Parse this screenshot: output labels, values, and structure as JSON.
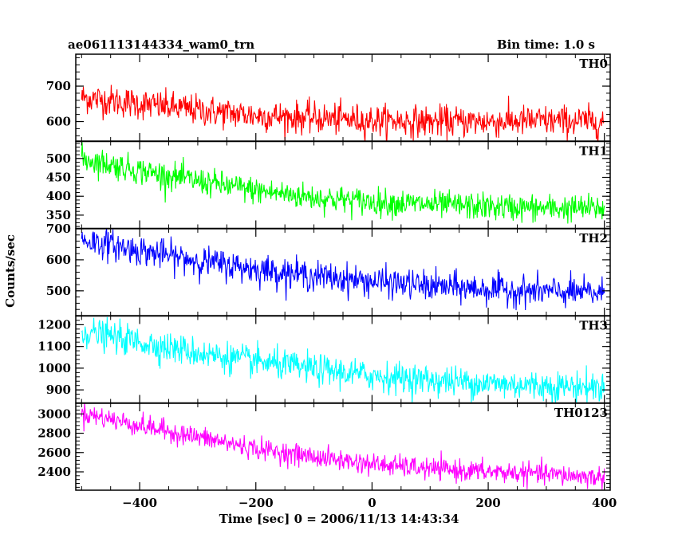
{
  "header": {
    "title": "ae061113144334_wam0_trn",
    "bin_time": "Bin time: 1.0 s"
  },
  "chart_data": {
    "type": "line",
    "subtype": "stacked light curves",
    "title": "ae061113144334_wam0_trn",
    "subtitle": "Bin time: 1.0 s",
    "xlabel": "Time [sec] 0 = 2006/11/13 14:43:34",
    "ylabel": "Counts/sec",
    "xlim": [
      -510,
      410
    ],
    "x_ticks": [
      -400,
      -200,
      0,
      200,
      400
    ],
    "x_tick_labels": [
      "−400",
      "−200",
      "0",
      "200",
      "400"
    ],
    "x_range": [
      -500,
      400
    ],
    "bin_time": 1.0,
    "panels": [
      {
        "name": "TH0",
        "color": "#ff0000",
        "ylim": [
          545,
          790
        ],
        "y_ticks": [
          600,
          700
        ],
        "y_tick_labels": [
          "600",
          "700"
        ],
        "trend": [
          [
            -500,
            668
          ],
          [
            -400,
            650
          ],
          [
            -300,
            632
          ],
          [
            -200,
            617
          ],
          [
            -100,
            610
          ],
          [
            0,
            603
          ],
          [
            100,
            600
          ],
          [
            200,
            600
          ],
          [
            300,
            602
          ],
          [
            400,
            600
          ]
        ],
        "noise_sd": 22
      },
      {
        "name": "TH1",
        "color": "#00ff00",
        "ylim": [
          315,
          545
        ],
        "y_ticks": [
          350,
          400,
          450,
          500
        ],
        "y_tick_labels": [
          "350",
          "400",
          "450",
          "500"
        ],
        "trend": [
          [
            -500,
            500
          ],
          [
            -400,
            468
          ],
          [
            -300,
            440
          ],
          [
            -200,
            415
          ],
          [
            -100,
            397
          ],
          [
            0,
            385
          ],
          [
            100,
            378
          ],
          [
            200,
            372
          ],
          [
            300,
            368
          ],
          [
            400,
            368
          ]
        ],
        "noise_sd": 18
      },
      {
        "name": "TH2",
        "color": "#0000ff",
        "ylim": [
          420,
          700
        ],
        "y_ticks": [
          500,
          600,
          700
        ],
        "y_tick_labels": [
          "500",
          "600",
          "700"
        ],
        "trend": [
          [
            -500,
            665
          ],
          [
            -400,
            630
          ],
          [
            -300,
            597
          ],
          [
            -200,
            570
          ],
          [
            -100,
            548
          ],
          [
            0,
            530
          ],
          [
            100,
            515
          ],
          [
            200,
            505
          ],
          [
            300,
            497
          ],
          [
            400,
            492
          ]
        ],
        "noise_sd": 24
      },
      {
        "name": "TH3",
        "color": "#00ffff",
        "ylim": [
          840,
          1240
        ],
        "y_ticks": [
          900,
          1000,
          1100,
          1200
        ],
        "y_tick_labels": [
          "900",
          "1000",
          "1100",
          "1200"
        ],
        "trend": [
          [
            -500,
            1170
          ],
          [
            -400,
            1120
          ],
          [
            -300,
            1070
          ],
          [
            -200,
            1030
          ],
          [
            -100,
            995
          ],
          [
            0,
            965
          ],
          [
            100,
            945
          ],
          [
            200,
            930
          ],
          [
            300,
            918
          ],
          [
            400,
            912
          ]
        ],
        "noise_sd": 35
      },
      {
        "name": "TH0123",
        "color": "#ff00ff",
        "ylim": [
          2210,
          3110
        ],
        "y_ticks": [
          2400,
          2600,
          2800,
          3000
        ],
        "y_tick_labels": [
          "2400",
          "2600",
          "2800",
          "3000"
        ],
        "trend": [
          [
            -500,
            3010
          ],
          [
            -400,
            2880
          ],
          [
            -300,
            2760
          ],
          [
            -200,
            2640
          ],
          [
            -100,
            2555
          ],
          [
            0,
            2480
          ],
          [
            100,
            2430
          ],
          [
            200,
            2400
          ],
          [
            300,
            2375
          ],
          [
            400,
            2340
          ]
        ],
        "noise_sd": 55
      }
    ],
    "grid": false,
    "legend": "none (panel labels top-right)"
  }
}
